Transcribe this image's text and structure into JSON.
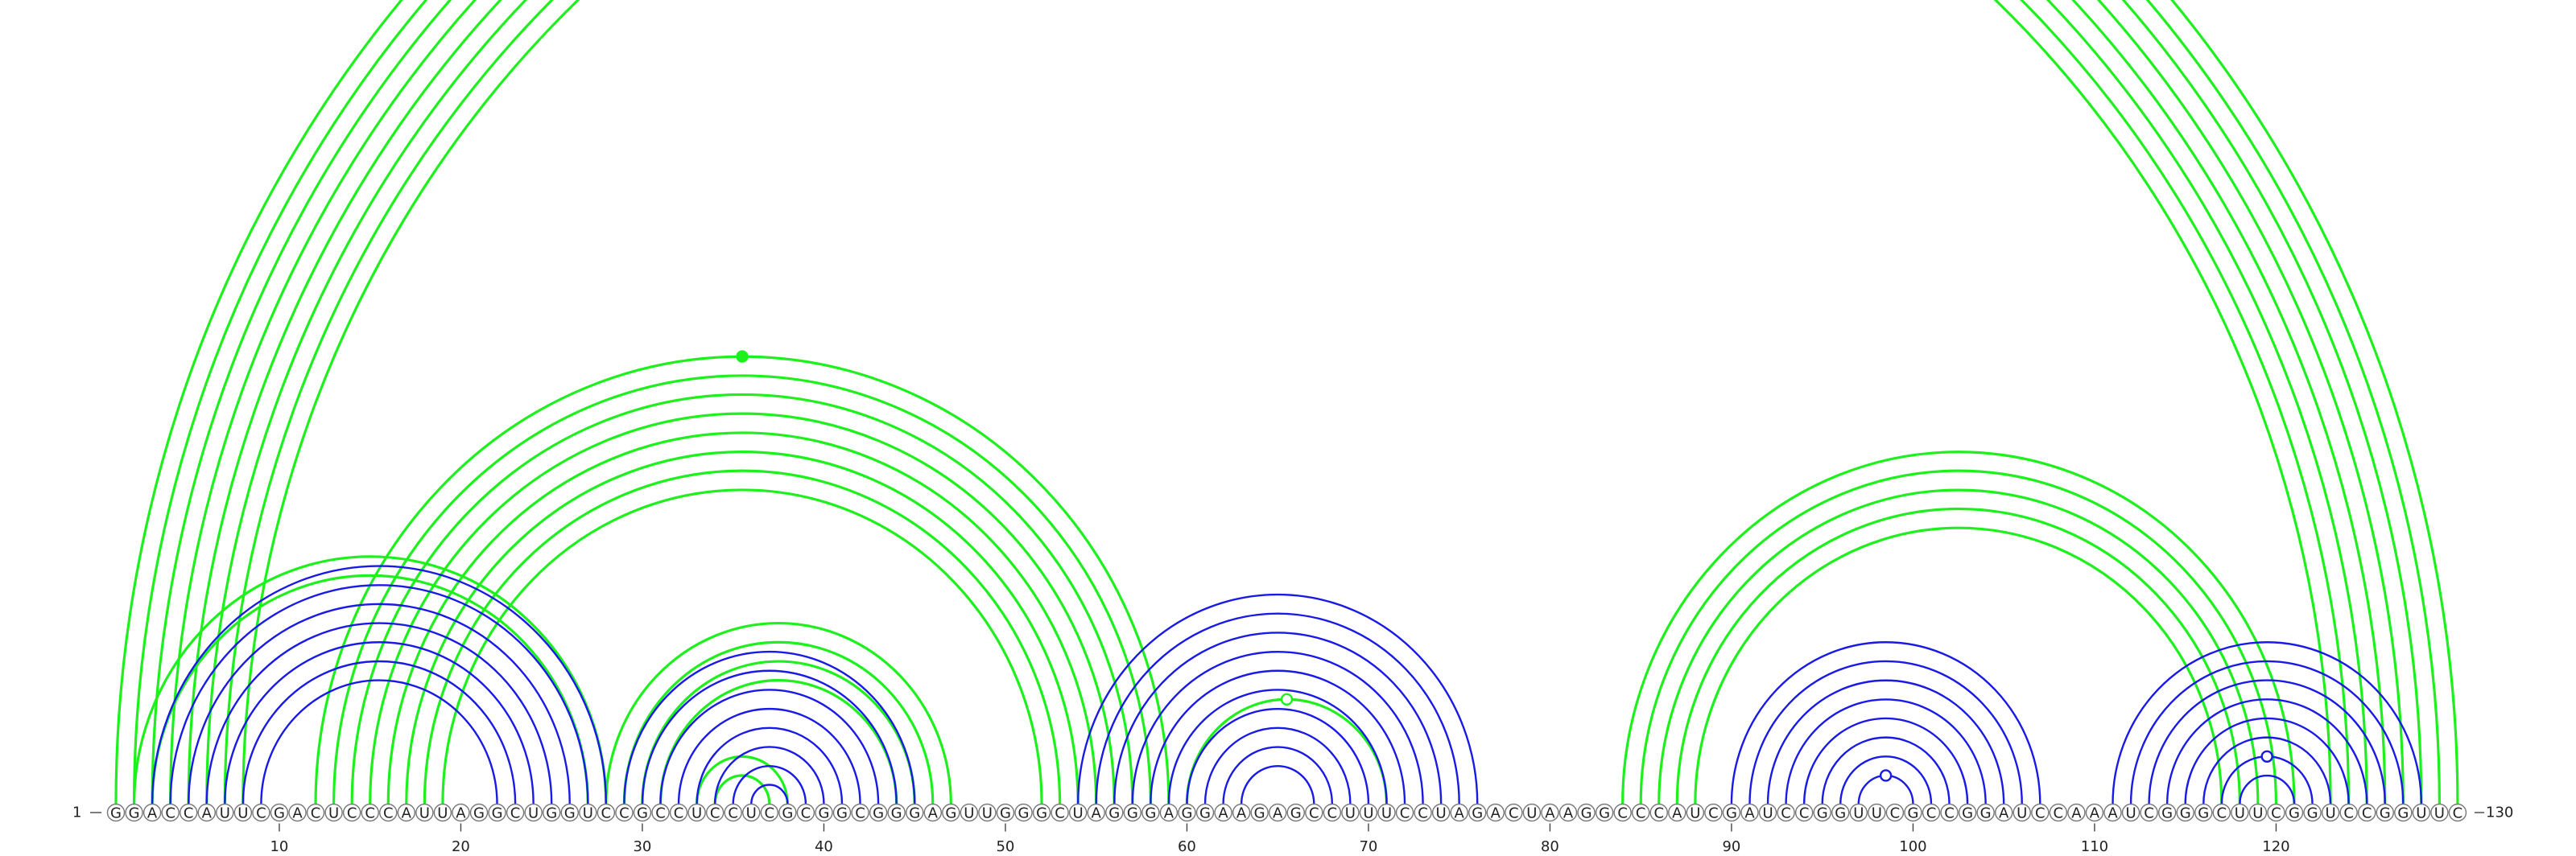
{
  "diagram": {
    "sequence": "GGACCAUUCGACUCCCAUUAGGCUGGUCCGCCUCCUCGCGGCGGGAGUUGGGCUAGGGAGGAAGAGCCUUUCCUAGACUAAGGCCCAUCGAUCCGGUUCGCCGGAUCCAAAUCGGGCUUCGGUCCGGUUC",
    "start_label": "1",
    "end_label": "130",
    "ticks": [
      "10",
      "20",
      "30",
      "40",
      "50",
      "60",
      "70",
      "80",
      "90",
      "100",
      "110",
      "120"
    ],
    "colors": {
      "upper_arcs": "#1ef01e",
      "lower_arcs": "#1a1ae6",
      "circle_stroke": "#777777",
      "text": "#222222"
    },
    "arc_groups": [
      {
        "color": "green",
        "pairs": [
          [
            1,
            130
          ],
          [
            2,
            129
          ],
          [
            3,
            128
          ],
          [
            4,
            127
          ],
          [
            5,
            126
          ],
          [
            6,
            125
          ],
          [
            7,
            124
          ],
          [
            8,
            123
          ]
        ],
        "marker": {
          "style": "open",
          "on_pair": [
            2,
            129
          ]
        }
      },
      {
        "color": "green",
        "pairs": [
          [
            12,
            59
          ],
          [
            13,
            58
          ],
          [
            14,
            57
          ],
          [
            15,
            56
          ],
          [
            16,
            55
          ],
          [
            17,
            54
          ],
          [
            18,
            53
          ],
          [
            19,
            52
          ]
        ],
        "marker": {
          "style": "filled",
          "on_pair": [
            12,
            59
          ]
        }
      },
      {
        "color": "green",
        "pairs": [
          [
            2,
            28
          ],
          [
            3,
            27
          ]
        ]
      },
      {
        "color": "green",
        "pairs": [
          [
            28,
            47
          ],
          [
            29,
            46
          ],
          [
            30,
            45
          ],
          [
            31,
            44
          ]
        ]
      },
      {
        "color": "green",
        "pairs": [
          [
            33,
            38
          ],
          [
            34,
            37
          ]
        ]
      },
      {
        "color": "green",
        "pairs": [
          [
            60,
            71
          ]
        ],
        "marker": {
          "style": "open",
          "on_pair": [
            60,
            71
          ]
        }
      },
      {
        "color": "green",
        "pairs": [
          [
            84,
            121
          ],
          [
            85,
            120
          ],
          [
            86,
            119
          ],
          [
            87,
            118
          ],
          [
            88,
            117
          ]
        ]
      },
      {
        "color": "blue",
        "pairs": [
          [
            3,
            28
          ],
          [
            4,
            27
          ],
          [
            5,
            26
          ],
          [
            6,
            25
          ],
          [
            7,
            24
          ],
          [
            8,
            23
          ],
          [
            9,
            22
          ]
        ]
      },
      {
        "color": "blue",
        "pairs": [
          [
            29,
            45
          ],
          [
            30,
            44
          ],
          [
            31,
            43
          ],
          [
            32,
            42
          ],
          [
            33,
            41
          ],
          [
            34,
            40
          ],
          [
            35,
            39
          ],
          [
            36,
            38
          ]
        ]
      },
      {
        "color": "blue",
        "pairs": [
          [
            54,
            76
          ],
          [
            55,
            75
          ],
          [
            56,
            74
          ],
          [
            57,
            73
          ],
          [
            58,
            72
          ],
          [
            59,
            71
          ],
          [
            60,
            70
          ],
          [
            61,
            69
          ],
          [
            62,
            68
          ],
          [
            63,
            67
          ]
        ]
      },
      {
        "color": "blue",
        "pairs": [
          [
            90,
            107
          ],
          [
            91,
            106
          ],
          [
            92,
            105
          ],
          [
            93,
            104
          ],
          [
            94,
            103
          ],
          [
            95,
            102
          ],
          [
            96,
            101
          ],
          [
            97,
            100
          ]
        ],
        "marker": {
          "style": "open",
          "on_pair": [
            97,
            100
          ]
        }
      },
      {
        "color": "blue",
        "pairs": [
          [
            111,
            128
          ],
          [
            112,
            127
          ],
          [
            113,
            126
          ],
          [
            114,
            125
          ],
          [
            115,
            124
          ],
          [
            116,
            123
          ],
          [
            117,
            122
          ],
          [
            118,
            121
          ]
        ],
        "marker": {
          "style": "open",
          "on_pair": [
            117,
            122
          ]
        }
      }
    ]
  }
}
